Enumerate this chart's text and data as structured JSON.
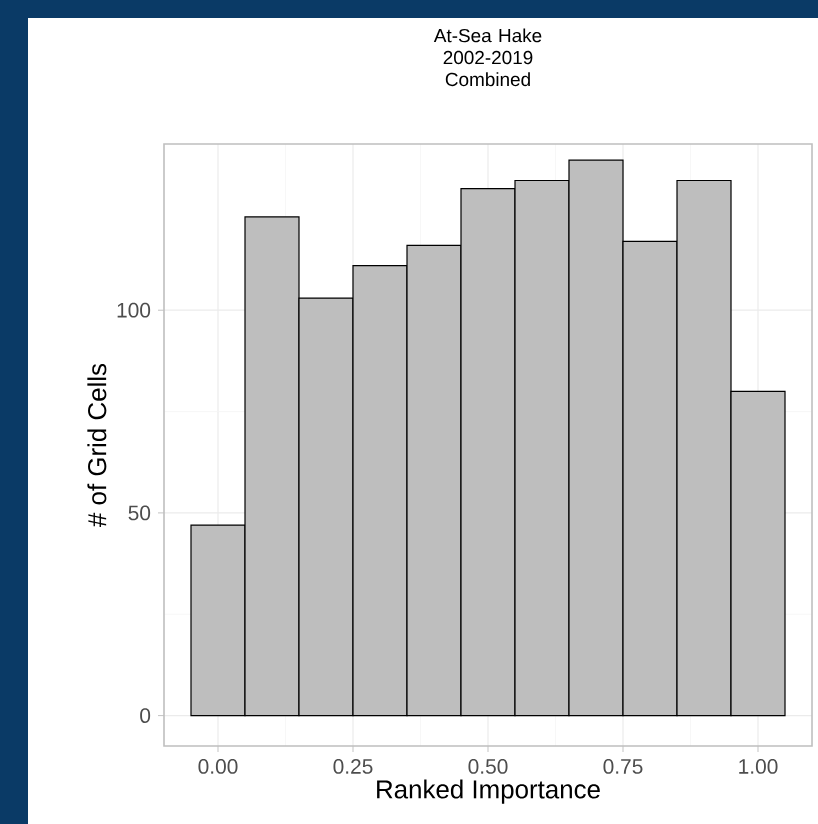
{
  "chart_data": {
    "type": "histogram",
    "title": "At-Sea Hake 2002-2019 Combined",
    "xlabel": "Ranked Importance",
    "ylabel": "# of Grid Cells",
    "bins": [
      -0.05,
      0.05,
      0.15,
      0.25,
      0.35,
      0.45,
      0.55,
      0.65,
      0.75,
      0.85,
      0.95,
      1.05
    ],
    "values": [
      47,
      123,
      103,
      111,
      116,
      130,
      132,
      137,
      117,
      132,
      80
    ],
    "color": "#bebebe",
    "xlim": [
      -0.1,
      1.1
    ],
    "ylim": [
      -7.5,
      141
    ],
    "xticks": [
      {
        "value": 0,
        "label": "0.00"
      },
      {
        "value": 0.25,
        "label": "0.25"
      },
      {
        "value": 0.5,
        "label": "0.50"
      },
      {
        "value": 0.75,
        "label": "0.75"
      },
      {
        "value": 1,
        "label": "1.00"
      }
    ],
    "yticks": [
      0,
      50,
      100
    ],
    "grid": true
  }
}
